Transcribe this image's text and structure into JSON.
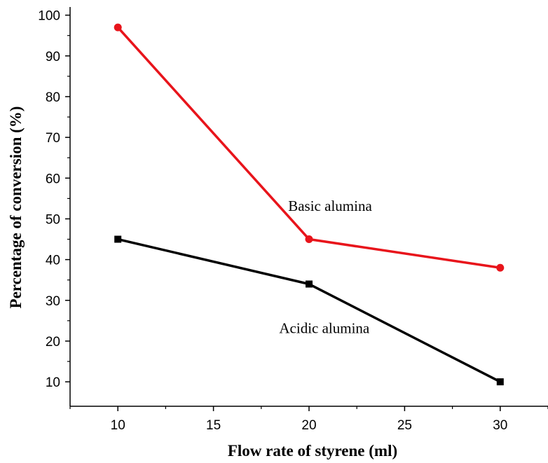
{
  "chart_data": {
    "type": "line",
    "xlabel": "Flow rate of styrene (ml)",
    "ylabel": "Percentage of conversion (%)",
    "xlim": [
      7.5,
      32.5
    ],
    "ylim": [
      4,
      102
    ],
    "x_ticks": [
      10,
      15,
      20,
      25,
      30
    ],
    "y_ticks": [
      10,
      20,
      30,
      40,
      50,
      60,
      70,
      80,
      90,
      100
    ],
    "grid": false,
    "x": [
      10,
      20,
      30
    ],
    "series": [
      {
        "name": "Basic alumina",
        "values": [
          97,
          45,
          38
        ],
        "color": "#e8141b",
        "marker": "circle"
      },
      {
        "name": "Acidic alumina",
        "values": [
          45,
          34,
          10
        ],
        "color": "#000000",
        "marker": "square"
      }
    ],
    "annotations": [
      {
        "text": "Basic alumina",
        "x": 21.1,
        "y": 52
      },
      {
        "text": "Acidic alumina",
        "x": 20.8,
        "y": 22
      }
    ]
  }
}
